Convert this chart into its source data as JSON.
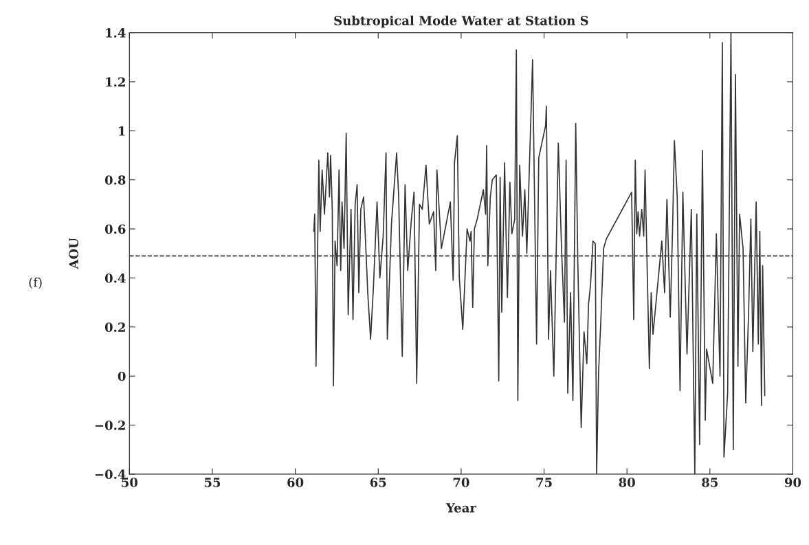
{
  "chart_data": {
    "type": "line",
    "title": "Subtropical Mode Water at Station S",
    "xlabel": "Year",
    "ylabel": "AOU",
    "annotations": [
      "(f)"
    ],
    "xlim": [
      50,
      90
    ],
    "xticks": [
      50,
      55,
      60,
      65,
      70,
      75,
      80,
      85,
      90
    ],
    "ylim": [
      -0.4,
      1.4
    ],
    "yticks": [
      {
        "value": -0.4,
        "label": "−0.4"
      },
      {
        "value": -0.2,
        "label": "−0.2"
      },
      0,
      0.2,
      0.4,
      0.6,
      0.8,
      1,
      1.2,
      1.4
    ],
    "grid": false,
    "legend": false,
    "marker": "none",
    "line_style": "solid",
    "ref_lines": [
      {
        "axis": "y",
        "value": 0.49,
        "color": "#333333",
        "line_style": "dashed"
      }
    ],
    "series": [
      {
        "color": "#333333",
        "x": [
          61.12,
          61.17,
          61.25,
          61.42,
          61.5,
          61.62,
          61.76,
          61.96,
          62.06,
          62.13,
          62.23,
          62.3,
          62.4,
          62.52,
          62.64,
          62.74,
          62.82,
          62.94,
          63.07,
          63.19,
          63.36,
          63.48,
          63.61,
          63.73,
          63.83,
          63.95,
          64.12,
          64.37,
          64.54,
          64.71,
          64.93,
          65.1,
          65.3,
          65.47,
          65.55,
          65.8,
          66.11,
          66.23,
          66.45,
          66.62,
          66.78,
          66.99,
          67.16,
          67.32,
          67.49,
          67.66,
          67.88,
          68.08,
          68.34,
          68.47,
          68.54,
          68.81,
          69.35,
          69.52,
          69.6,
          69.77,
          69.89,
          70.1,
          70.36,
          70.53,
          70.6,
          70.7,
          70.8,
          70.97,
          71.34,
          71.48,
          71.54,
          71.61,
          71.76,
          71.88,
          72.12,
          72.27,
          72.35,
          72.45,
          72.62,
          72.79,
          72.94,
          73.06,
          73.23,
          73.33,
          73.42,
          73.53,
          73.7,
          73.84,
          73.96,
          74.31,
          74.55,
          74.68,
          75.09,
          75.14,
          75.27,
          75.39,
          75.59,
          75.86,
          76.06,
          76.23,
          76.33,
          76.43,
          76.6,
          76.74,
          76.91,
          77.04,
          77.24,
          77.41,
          77.58,
          77.68,
          77.8,
          77.95,
          78.09,
          78.17,
          78.29,
          78.42,
          78.59,
          78.76,
          80.28,
          80.41,
          80.5,
          80.59,
          80.67,
          80.76,
          80.89,
          81.01,
          81.09,
          81.35,
          81.46,
          81.57,
          82.1,
          82.27,
          82.41,
          82.61,
          82.75,
          82.86,
          83.03,
          83.2,
          83.37,
          83.62,
          83.88,
          84.09,
          84.21,
          84.38,
          84.55,
          84.72,
          84.8,
          85.17,
          85.39,
          85.61,
          85.75,
          85.85,
          86.07,
          86.27,
          86.41,
          86.54,
          86.69,
          86.79,
          87.0,
          87.16,
          87.33,
          87.47,
          87.59,
          87.79,
          87.92,
          88.01,
          88.11,
          88.18,
          88.31
        ],
        "values": [
          0.59,
          0.66,
          0.04,
          0.88,
          0.59,
          0.84,
          0.66,
          0.91,
          0.73,
          0.9,
          0.68,
          -0.04,
          0.55,
          0.45,
          0.84,
          0.43,
          0.71,
          0.52,
          0.99,
          0.25,
          0.68,
          0.23,
          0.7,
          0.78,
          0.34,
          0.68,
          0.73,
          0.34,
          0.15,
          0.36,
          0.71,
          0.4,
          0.57,
          0.91,
          0.15,
          0.62,
          0.91,
          0.74,
          0.08,
          0.78,
          0.43,
          0.63,
          0.75,
          -0.03,
          0.7,
          0.68,
          0.86,
          0.62,
          0.67,
          0.43,
          0.84,
          0.52,
          0.71,
          0.39,
          0.87,
          0.98,
          0.4,
          0.19,
          0.6,
          0.55,
          0.59,
          0.28,
          0.6,
          0.64,
          0.76,
          0.66,
          0.94,
          0.45,
          0.73,
          0.8,
          0.82,
          -0.02,
          0.81,
          0.26,
          0.87,
          0.32,
          0.79,
          0.58,
          0.64,
          1.33,
          -0.1,
          0.86,
          0.57,
          0.76,
          0.5,
          1.29,
          0.13,
          0.89,
          1.02,
          1.1,
          0.15,
          0.43,
          0.0,
          0.95,
          0.51,
          0.22,
          0.88,
          -0.07,
          0.34,
          -0.1,
          1.03,
          0.45,
          -0.21,
          0.18,
          0.05,
          0.29,
          0.37,
          0.55,
          0.54,
          -0.4,
          0.02,
          0.22,
          0.52,
          0.56,
          0.75,
          0.23,
          0.88,
          0.58,
          0.67,
          0.57,
          0.68,
          0.57,
          0.84,
          0.03,
          0.34,
          0.17,
          0.55,
          0.34,
          0.72,
          0.24,
          0.6,
          0.96,
          0.73,
          -0.06,
          0.75,
          0.09,
          0.68,
          -0.4,
          0.66,
          -0.28,
          0.92,
          -0.18,
          0.11,
          -0.03,
          0.58,
          0.0,
          1.36,
          -0.33,
          -0.07,
          1.4,
          -0.3,
          1.23,
          0.04,
          0.66,
          0.52,
          -0.11,
          0.25,
          0.64,
          0.1,
          0.71,
          0.13,
          0.59,
          -0.12,
          0.45,
          -0.08
        ]
      }
    ]
  }
}
